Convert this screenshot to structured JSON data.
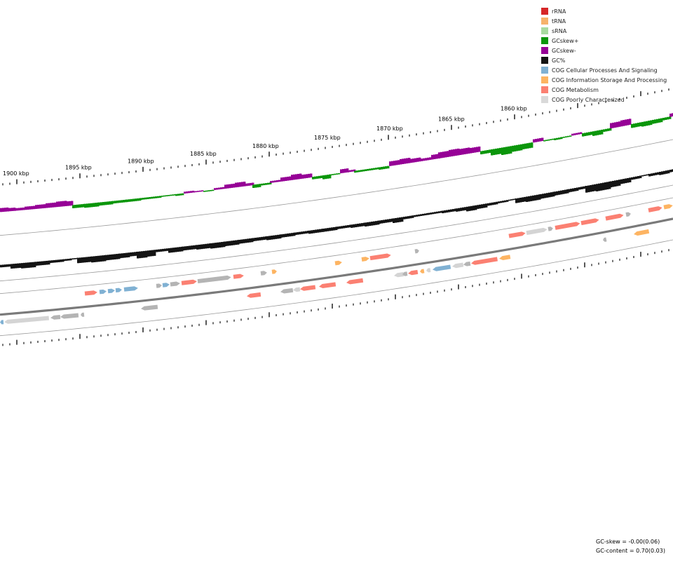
{
  "legend": [
    {
      "label": "rRNA",
      "color": "#d62728"
    },
    {
      "label": "tRNA",
      "color": "#f7b36b"
    },
    {
      "label": "sRNA",
      "color": "#a8dba0"
    },
    {
      "label": "GCskew+",
      "color": "#0b960b"
    },
    {
      "label": "GCskew-",
      "color": "#960096"
    },
    {
      "label": "GC%",
      "color": "#141414"
    },
    {
      "label": "COG Cellular Processes And Signaling",
      "color": "#80b1d3"
    },
    {
      "label": "COG Information Storage And Processing",
      "color": "#fdb462"
    },
    {
      "label": "COG Metabolism",
      "color": "#fb8072"
    },
    {
      "label": "COG Poorly Characterized",
      "color": "#d9d9d9"
    }
  ],
  "ruler": {
    "labels": [
      "1900 kbp",
      "1895 kbp",
      "1890 kbp",
      "1885 kbp",
      "1880 kbp",
      "1875 kbp",
      "1870 kbp",
      "1865 kbp",
      "1860 kbp"
    ]
  },
  "stats": {
    "gc_skew": "GC-skew = -0.00(0.06)",
    "gc_content": "GC-content = 0.70(0.03)"
  }
}
